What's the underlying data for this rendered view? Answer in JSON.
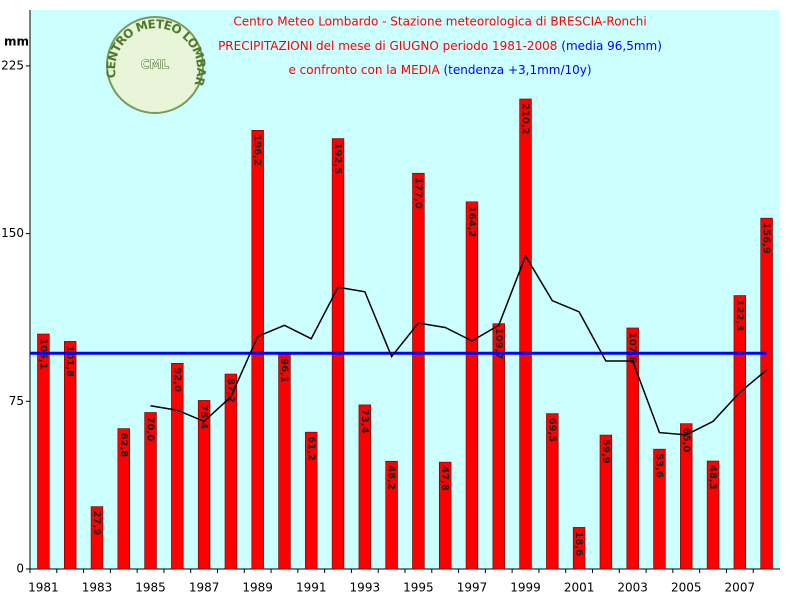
{
  "chart_data": {
    "type": "bar",
    "title": "Centro Meteo Lombardo - Stazione meteorologica di BRESCIA-Ronchi",
    "subtitle": "PRECIPITAZIONI del mese di GIUGNO periodo 1981-2008",
    "subtitle_note": "(media 96,5mm)",
    "subtitle2": "e confronto con la MEDIA",
    "subtitle2_note": "(tendenza +3,1mm/10y)",
    "logo_text": "CENTRO METEO LOMBARDO",
    "logo_abbr": "CML",
    "y_label": "mm",
    "categories": [
      "1981",
      null,
      "1983",
      null,
      "1985",
      null,
      "1987",
      null,
      "1989",
      null,
      "1991",
      null,
      "1993",
      null,
      "1995",
      null,
      "1997",
      null,
      "1999",
      null,
      "2001",
      null,
      "2003",
      null,
      "2005",
      null,
      "2007",
      null
    ],
    "values": [
      105.1,
      101.8,
      27.9,
      62.8,
      70.0,
      92.0,
      75.4,
      87.2,
      196.2,
      96.1,
      61.2,
      192.5,
      73.4,
      48.2,
      177.0,
      47.8,
      164.2,
      109.7,
      210.2,
      69.5,
      18.6,
      59.9,
      107.8,
      53.6,
      65.0,
      48.3,
      122.3,
      156.9
    ],
    "value_labels": [
      "105,1",
      "101,8",
      "27,9",
      "62,8",
      "70,0",
      "92,0",
      "75,4",
      "87,2",
      "196,2",
      "96,1",
      "61,2",
      "192,5",
      "73,4",
      "48,2",
      "177,0",
      "47,8",
      "164,2",
      "109,7",
      "210,2",
      "69,5",
      "18,6",
      "59,9",
      "107,8",
      "53,6",
      "65,0",
      "48,3",
      "122,3",
      "156,9"
    ],
    "color": "#ff0000",
    "mean": 96.5,
    "mean_color": "#0000ff",
    "trend": [
      null,
      null,
      null,
      null,
      73,
      71,
      66,
      77,
      104,
      109,
      103,
      126,
      124,
      95,
      110,
      108,
      102,
      109,
      140,
      120,
      115,
      93,
      93,
      61,
      60,
      66,
      79,
      89
    ],
    "trend_color": "#000000",
    "ylim": [
      0,
      250
    ],
    "yticks": [
      0,
      75,
      150,
      225
    ]
  }
}
